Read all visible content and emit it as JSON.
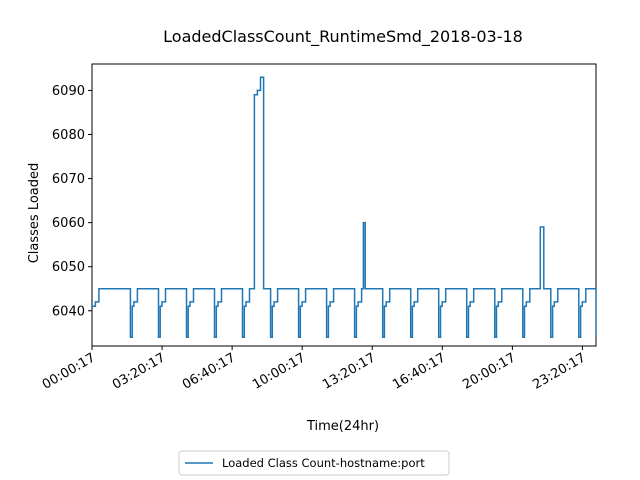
{
  "chart_data": {
    "type": "line",
    "title": "LoadedClassCount_RuntimeSmd_2018-03-18",
    "xlabel": "Time(24hr)",
    "ylabel": "Classes Loaded",
    "xlim": [
      "00:00:17",
      "23:59:00"
    ],
    "ylim": [
      6032,
      6096
    ],
    "yticks": [
      6040,
      6050,
      6060,
      6070,
      6080,
      6090
    ],
    "xticks": [
      "00:00:17",
      "03:20:17",
      "06:40:17",
      "10:00:17",
      "13:20:17",
      "16:40:17",
      "20:00:17",
      "23:20:17"
    ],
    "legend": {
      "position": "bottom-center",
      "entries": [
        "Loaded Class Count-hostname:port"
      ]
    },
    "grid": false,
    "series": [
      {
        "name": "Loaded Class Count-hostname:port",
        "color": "#1f77b4",
        "x": [
          "00:00:17",
          "00:10:00",
          "00:20:00",
          "00:30:00",
          "01:00:00",
          "01:40:00",
          "01:50:00",
          "01:55:00",
          "02:00:00",
          "02:10:00",
          "02:20:00",
          "03:00:00",
          "03:10:00",
          "03:15:00",
          "03:20:00",
          "03:30:00",
          "03:40:00",
          "04:20:00",
          "04:30:00",
          "04:35:00",
          "04:40:00",
          "04:50:00",
          "05:00:00",
          "05:40:00",
          "05:50:00",
          "05:55:00",
          "06:00:00",
          "06:10:00",
          "06:20:00",
          "07:00:00",
          "07:10:00",
          "07:15:00",
          "07:20:00",
          "07:30:00",
          "07:40:00",
          "08:20:00",
          "08:30:00",
          "08:35:00",
          "08:40:00",
          "08:50:00",
          "09:00:00",
          "09:40:00",
          "09:50:00",
          "09:55:00",
          "10:00:00",
          "10:10:00",
          "10:20:00",
          "11:00:00",
          "11:10:00",
          "11:15:00",
          "11:20:00",
          "11:30:00",
          "11:40:00",
          "12:20:00",
          "12:30:00",
          "12:35:00",
          "12:40:00",
          "12:50:00",
          "13:00:00",
          "13:40:00",
          "13:50:00",
          "13:55:00",
          "14:00:00",
          "14:10:00",
          "14:20:00",
          "15:00:00",
          "15:10:00",
          "15:15:00",
          "15:20:00",
          "15:30:00",
          "15:40:00",
          "16:20:00",
          "16:30:00",
          "16:35:00",
          "16:40:00",
          "16:50:00",
          "17:00:00",
          "17:40:00",
          "17:50:00",
          "17:55:00",
          "18:00:00",
          "18:10:00",
          "18:20:00",
          "19:00:00",
          "19:10:00",
          "19:15:00",
          "19:20:00",
          "19:30:00",
          "19:40:00",
          "20:20:00",
          "20:30:00",
          "20:35:00",
          "20:40:00",
          "20:50:00",
          "21:00:00",
          "21:40:00",
          "21:50:00",
          "21:55:00",
          "22:00:00",
          "22:10:00",
          "22:20:00",
          "23:00:00",
          "23:10:00",
          "23:15:00",
          "23:20:00",
          "23:30:00",
          "23:40:00",
          "23:58:00",
          "23:59:00"
        ],
        "y": [
          6041,
          6042,
          6045,
          6045,
          6045,
          6045,
          6034,
          6041,
          6042,
          6045,
          6045,
          6045,
          6034,
          6041,
          6042,
          6045,
          6045,
          6045,
          6034,
          6041,
          6042,
          6045,
          6045,
          6045,
          6034,
          6041,
          6042,
          6045,
          6045,
          6045,
          6034,
          6041,
          6042,
          6045,
          6045,
          6045,
          6034,
          6041,
          6042,
          6045,
          6045,
          6045,
          6034,
          6041,
          6042,
          6045,
          6045,
          6045,
          6034,
          6041,
          6042,
          6045,
          6045,
          6045,
          6034,
          6041,
          6042,
          6045,
          6045,
          6045,
          6034,
          6041,
          6042,
          6045,
          6045,
          6045,
          6034,
          6041,
          6042,
          6045,
          6045,
          6045,
          6034,
          6041,
          6042,
          6045,
          6045,
          6045,
          6034,
          6041,
          6042,
          6045,
          6045,
          6045,
          6034,
          6041,
          6042,
          6045,
          6045,
          6045,
          6034,
          6041,
          6042,
          6045,
          6045,
          6045,
          6034,
          6041,
          6042,
          6045,
          6045,
          6045,
          6034,
          6041,
          6042,
          6045,
          6045,
          6045,
          6034
        ]
      }
    ],
    "spikes": [
      {
        "start": "07:35:00",
        "end": "08:10:00",
        "values": [
          6045,
          6089,
          6090,
          6093,
          6093
        ]
      },
      {
        "start": "12:50:00",
        "end": "13:00:00",
        "values": [
          6045,
          6060,
          6060
        ]
      },
      {
        "start": "21:10:00",
        "end": "21:30:00",
        "values": [
          6045,
          6059,
          6059
        ]
      }
    ]
  }
}
